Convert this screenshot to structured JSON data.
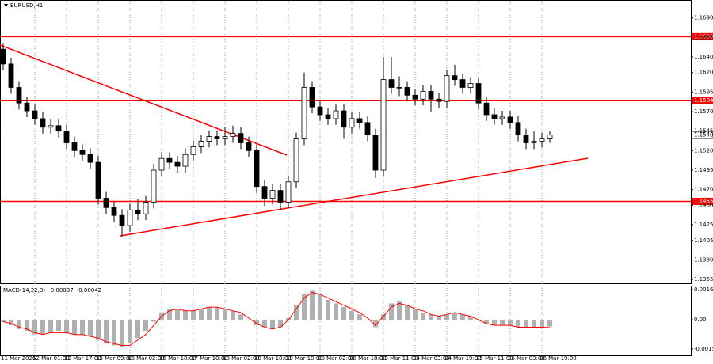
{
  "chart_data": [
    {
      "type": "candlestick",
      "title": "EURUSD,H1",
      "categories": [
        "11 Mar 2026",
        null,
        null,
        null,
        "12 Mar 01:00",
        null,
        null,
        null,
        "12 Mar 17:00",
        null,
        null,
        null,
        "13 Mar 09:00",
        null,
        null,
        null,
        "16 Mar 02:00",
        null,
        null,
        null,
        "16 Mar 18:00",
        null,
        null,
        null,
        "17 Mar 10:00",
        null,
        null,
        null,
        "18 Mar 02:00",
        null,
        null,
        null,
        "18 Mar 18:00",
        null,
        null,
        null,
        "19 Mar 10:00",
        null,
        null,
        null,
        "20 Mar 02:00",
        null,
        null,
        null,
        "20 Mar 18:00",
        null,
        null,
        null,
        "23 Mar 11:00",
        null,
        null,
        null,
        "24 Mar 03:00",
        null,
        null,
        null,
        "24 Mar 19:00",
        null,
        null,
        null,
        "25 Mar 11:00",
        null,
        null,
        null,
        "26 Mar 03:00",
        null,
        null,
        null,
        "26 Mar 19:00",
        null
      ],
      "open": [
        1.165,
        1.1631,
        1.1601,
        1.1581,
        1.1571,
        1.1561,
        1.155,
        1.1552,
        1.1545,
        1.153,
        1.152,
        1.1515,
        1.1505,
        1.1459,
        1.1447,
        1.1437,
        1.1424,
        1.1444,
        1.1439,
        1.1454,
        1.1495,
        1.151,
        1.1505,
        1.15,
        1.1515,
        1.1525,
        1.1532,
        1.1538,
        1.1535,
        1.1538,
        1.1542,
        1.153,
        1.152,
        1.1474,
        1.1459,
        1.1469,
        1.1454,
        1.148,
        1.1535,
        1.1601,
        1.1576,
        1.1566,
        1.1561,
        1.1571,
        1.155,
        1.1561,
        1.1556,
        1.154,
        1.1495,
        1.1611,
        1.1601,
        1.1601,
        1.1591,
        1.1586,
        1.1596,
        1.1586,
        1.1583,
        1.1616,
        1.1611,
        1.1601,
        1.1606,
        1.1581,
        1.1566,
        1.1561,
        1.1563,
        1.1556,
        1.154,
        1.153,
        1.1532,
        1.1535
      ],
      "high": [
        1.1658,
        1.1639,
        1.1609,
        1.1589,
        1.1579,
        1.1569,
        1.156,
        1.156,
        1.1553,
        1.1538,
        1.1528,
        1.1523,
        1.1513,
        1.1467,
        1.1455,
        1.1445,
        1.1452,
        1.1458,
        1.1462,
        1.1503,
        1.1518,
        1.1518,
        1.1513,
        1.1523,
        1.1533,
        1.154,
        1.1546,
        1.1546,
        1.155,
        1.1552,
        1.155,
        1.1538,
        1.1528,
        1.1482,
        1.1477,
        1.1477,
        1.1488,
        1.1543,
        1.162,
        1.1609,
        1.1584,
        1.1574,
        1.1579,
        1.1579,
        1.1569,
        1.1569,
        1.1564,
        1.1548,
        1.164,
        1.164,
        1.1615,
        1.1609,
        1.1599,
        1.1604,
        1.1604,
        1.1594,
        1.1624,
        1.163,
        1.1619,
        1.1614,
        1.1614,
        1.1589,
        1.1574,
        1.1571,
        1.1571,
        1.1564,
        1.1548,
        1.1545,
        1.1543,
        1.1545
      ],
      "low": [
        1.1623,
        1.1593,
        1.1573,
        1.1563,
        1.1553,
        1.1542,
        1.1542,
        1.1537,
        1.1522,
        1.1512,
        1.1507,
        1.1497,
        1.1451,
        1.1439,
        1.1429,
        1.141,
        1.1416,
        1.1431,
        1.1431,
        1.1446,
        1.1487,
        1.1497,
        1.1492,
        1.1492,
        1.1507,
        1.1517,
        1.1524,
        1.1527,
        1.1527,
        1.153,
        1.1522,
        1.1512,
        1.1466,
        1.1449,
        1.1451,
        1.1444,
        1.1446,
        1.1472,
        1.1527,
        1.1568,
        1.1558,
        1.1553,
        1.1553,
        1.1535,
        1.1542,
        1.1548,
        1.1532,
        1.1485,
        1.1487,
        1.1593,
        1.159,
        1.1583,
        1.1578,
        1.1578,
        1.157,
        1.1575,
        1.1575,
        1.1603,
        1.1593,
        1.1593,
        1.1573,
        1.1558,
        1.1553,
        1.1553,
        1.1548,
        1.1532,
        1.1522,
        1.1522,
        1.1524,
        1.153
      ],
      "close": [
        1.1631,
        1.1601,
        1.1581,
        1.1571,
        1.1561,
        1.155,
        1.1552,
        1.1545,
        1.153,
        1.152,
        1.1515,
        1.1505,
        1.1459,
        1.1447,
        1.1437,
        1.1424,
        1.1444,
        1.1439,
        1.1454,
        1.1495,
        1.151,
        1.1505,
        1.15,
        1.1515,
        1.1525,
        1.1532,
        1.1538,
        1.1535,
        1.1538,
        1.1542,
        1.153,
        1.152,
        1.1474,
        1.1459,
        1.1469,
        1.1454,
        1.148,
        1.1535,
        1.1601,
        1.1576,
        1.1566,
        1.1561,
        1.1571,
        1.155,
        1.1561,
        1.1556,
        1.154,
        1.1495,
        1.1611,
        1.1601,
        1.1601,
        1.1591,
        1.1586,
        1.1596,
        1.1586,
        1.1583,
        1.1616,
        1.1611,
        1.1601,
        1.1606,
        1.1581,
        1.1566,
        1.1561,
        1.1563,
        1.1556,
        1.154,
        1.153,
        1.1532,
        1.1535,
        1.154
      ],
      "ylim": [
        1.135,
        1.1712
      ],
      "yticks": [
        {
          "value": 1.169,
          "label": "1.1690"
        },
        1.1665,
        {
          "value": 1.164,
          "label": "1.1640"
        },
        {
          "value": 1.162,
          "label": "1.1620"
        },
        1.1595,
        {
          "value": 1.157,
          "label": "1.1570"
        },
        1.1545,
        {
          "value": 1.152,
          "label": "1.1520"
        },
        1.1495,
        {
          "value": 1.147,
          "label": "1.1470"
        },
        {
          "value": 1.145,
          "label": "1.1450"
        },
        1.1425,
        1.1405,
        {
          "value": 1.138,
          "label": "1.1380"
        },
        1.1355
      ],
      "levels": [
        1.1666,
        1.1584,
        1.1455
      ],
      "level_color": "#ff0000",
      "current_price": {
        "value": 1.154,
        "label": "1.1540"
      },
      "grid": true
    },
    {
      "type": "bar",
      "title": "MACD(14,22,3)",
      "series": [
        {
          "name": "MACD",
          "color": "#b0b0b0",
          "values": [
            -0.0001,
            -0.0003,
            -0.0005,
            -0.0006,
            -0.0008,
            -0.0008,
            -0.0007,
            -0.0006,
            -0.0007,
            -0.0008,
            -0.0008,
            -0.0009,
            -0.0011,
            -0.0013,
            -0.0014,
            -0.0015,
            -0.0013,
            -0.001,
            -0.0006,
            -0.0001,
            0.0004,
            0.0006,
            0.0006,
            0.0005,
            0.0005,
            0.0006,
            0.0007,
            0.0007,
            0.0006,
            0.0005,
            0.0003,
            0.0,
            -0.0003,
            -0.0004,
            -0.0005,
            -0.0004,
            0.0001,
            0.0008,
            0.0014,
            0.0016,
            0.0014,
            0.0011,
            0.0009,
            0.0007,
            0.0005,
            0.0003,
            0.0,
            -0.0004,
            0.0003,
            0.0009,
            0.001,
            0.0008,
            0.0006,
            0.0004,
            0.0003,
            0.0002,
            0.0003,
            0.0004,
            0.0003,
            0.0002,
            0.0,
            -0.0002,
            -0.0003,
            -0.0003,
            -0.0003,
            -0.0004,
            -0.0004,
            -0.0004,
            -0.0004,
            -0.00037
          ]
        },
        {
          "name": "Signal",
          "color": "#ff0000",
          "values": [
            -0.0001,
            -0.0002,
            -0.0004,
            -0.0005,
            -0.0007,
            -0.0008,
            -0.0007,
            -0.0007,
            -0.0007,
            -0.0008,
            -0.0008,
            -0.0009,
            -0.001,
            -0.0012,
            -0.0013,
            -0.0014,
            -0.0014,
            -0.0011,
            -0.0008,
            -0.0003,
            0.0002,
            0.0005,
            0.0006,
            0.0005,
            0.0005,
            0.0006,
            0.0007,
            0.0007,
            0.0006,
            0.0005,
            0.0004,
            0.0001,
            -0.0002,
            -0.0004,
            -0.0005,
            -0.0004,
            0.0,
            0.0006,
            0.0012,
            0.0015,
            0.0014,
            0.0012,
            0.001,
            0.0008,
            0.0006,
            0.0004,
            0.0001,
            -0.0003,
            0.0002,
            0.0007,
            0.0009,
            0.0008,
            0.0006,
            0.0005,
            0.0003,
            0.0002,
            0.0003,
            0.0004,
            0.0003,
            0.0002,
            0.0,
            -0.0002,
            -0.0003,
            -0.0003,
            -0.0003,
            -0.0004,
            -0.0004,
            -0.0004,
            -0.0004,
            -0.00042
          ]
        }
      ],
      "ylim": [
        -0.00194,
        0.00183
      ],
      "yticks": [
        0.00165,
        {
          "value": 0,
          "label": "0.00"
        },
        -0.00159
      ]
    }
  ]
}
